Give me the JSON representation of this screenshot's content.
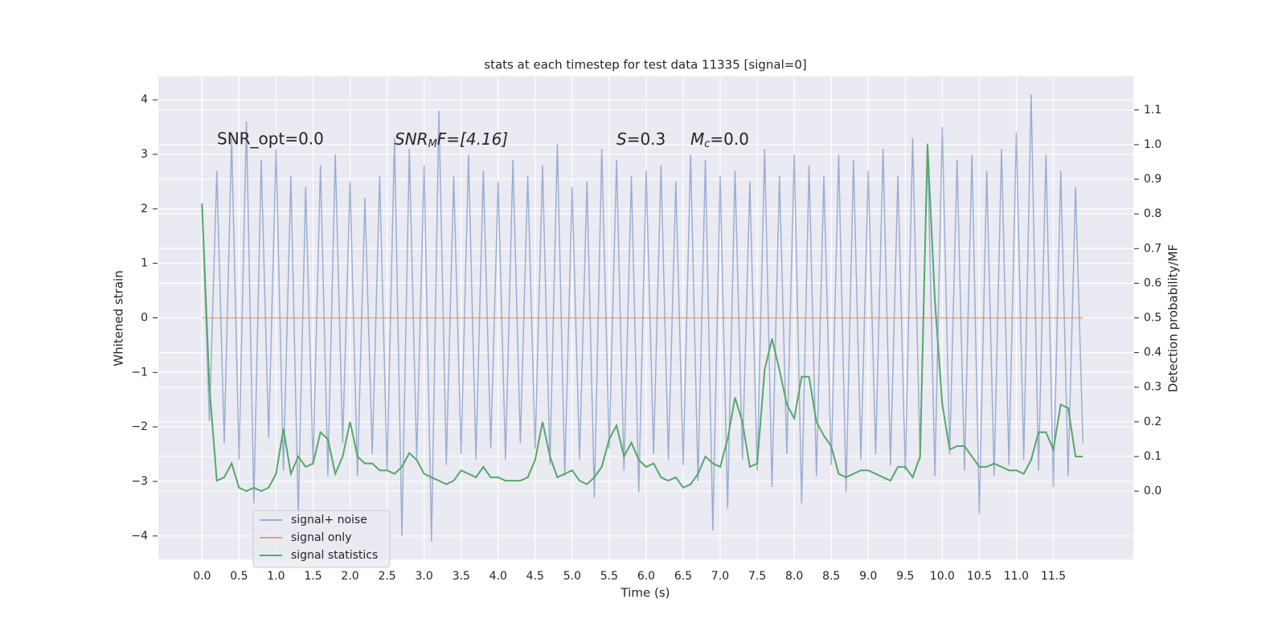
{
  "chart_data": {
    "type": "line",
    "title": "stats at each timestep for test data 11335 [signal=0]",
    "xlabel": "Time (s)",
    "ylabel": "Whitened strain",
    "y2label": "Detection probability/MF",
    "annotations": [
      "SNR_opt=0.0",
      [
        "SNR",
        "M",
        "F=[4.16]"
      ],
      [
        "S",
        "=0.3"
      ],
      [
        "M",
        "c",
        "=0.0"
      ]
    ],
    "x": [
      0.0,
      0.1,
      0.2,
      0.3,
      0.4,
      0.5,
      0.6,
      0.7,
      0.8,
      0.9,
      1.0,
      1.1,
      1.2,
      1.3,
      1.4,
      1.5,
      1.6,
      1.7,
      1.8,
      1.9,
      2.0,
      2.1,
      2.2,
      2.3,
      2.4,
      2.5,
      2.6,
      2.7,
      2.8,
      2.9,
      3.0,
      3.1,
      3.2,
      3.3,
      3.4,
      3.5,
      3.6,
      3.7,
      3.8,
      3.9,
      4.0,
      4.1,
      4.2,
      4.3,
      4.4,
      4.5,
      4.6,
      4.7,
      4.8,
      4.9,
      5.0,
      5.1,
      5.2,
      5.3,
      5.4,
      5.5,
      5.6,
      5.7,
      5.8,
      5.9,
      6.0,
      6.1,
      6.2,
      6.3,
      6.4,
      6.5,
      6.6,
      6.7,
      6.8,
      6.9,
      7.0,
      7.1,
      7.2,
      7.3,
      7.4,
      7.5,
      7.6,
      7.7,
      7.8,
      7.9,
      8.0,
      8.1,
      8.2,
      8.3,
      8.4,
      8.5,
      8.6,
      8.7,
      8.8,
      8.9,
      9.0,
      9.1,
      9.2,
      9.3,
      9.4,
      9.5,
      9.6,
      9.7,
      9.8,
      9.9,
      10.0,
      10.1,
      10.2,
      10.3,
      10.4,
      10.5,
      10.6,
      10.7,
      10.8,
      10.9,
      11.0,
      11.1,
      11.2,
      11.3,
      11.4,
      11.5,
      11.6,
      11.7,
      11.8,
      11.9
    ],
    "series": [
      {
        "name": "signal+ noise",
        "color": "#4c72b0",
        "opacity": 0.5,
        "values": [
          2.1,
          -1.9,
          2.7,
          -2.3,
          3.3,
          -2.6,
          3.6,
          -3.4,
          2.9,
          -2.2,
          3.1,
          -2.8,
          2.6,
          -3.6,
          2.4,
          -2.7,
          2.8,
          -2.9,
          3.0,
          -2.3,
          2.5,
          -2.9,
          2.2,
          -2.5,
          2.6,
          -2.8,
          3.3,
          -4.0,
          3.1,
          -2.6,
          2.8,
          -4.1,
          3.8,
          -2.7,
          2.6,
          -2.5,
          3.0,
          -2.6,
          2.7,
          -2.4,
          2.5,
          -2.6,
          2.9,
          -2.3,
          2.6,
          -2.4,
          2.8,
          -2.7,
          3.2,
          -2.9,
          2.4,
          -2.6,
          2.5,
          -3.3,
          3.1,
          -2.4,
          2.9,
          -2.8,
          2.6,
          -3.2,
          2.7,
          -2.5,
          2.8,
          -2.6,
          2.5,
          -2.7,
          3.0,
          -3.0,
          2.9,
          -3.9,
          2.6,
          -3.5,
          2.7,
          -2.6,
          2.5,
          -2.8,
          3.1,
          -3.1,
          2.6,
          -2.5,
          3.0,
          -3.4,
          2.8,
          -2.9,
          2.6,
          -2.7,
          3.0,
          -3.2,
          2.9,
          -2.6,
          2.7,
          -2.5,
          3.1,
          -2.7,
          2.6,
          -2.8,
          3.3,
          -2.6,
          3.2,
          -2.9,
          3.5,
          -2.5,
          2.9,
          -2.8,
          3.0,
          -3.6,
          2.7,
          -2.9,
          3.1,
          -2.7,
          3.4,
          -2.6,
          4.1,
          -2.8,
          3.0,
          -3.1,
          2.7,
          -2.9,
          2.4,
          -2.3
        ]
      },
      {
        "name": "signal only",
        "color": "#dd8452",
        "opacity": 0.7,
        "values": [
          0,
          0,
          0,
          0,
          0,
          0,
          0,
          0,
          0,
          0,
          0,
          0,
          0,
          0,
          0,
          0,
          0,
          0,
          0,
          0,
          0,
          0,
          0,
          0,
          0,
          0,
          0,
          0,
          0,
          0,
          0,
          0,
          0,
          0,
          0,
          0,
          0,
          0,
          0,
          0,
          0,
          0,
          0,
          0,
          0,
          0,
          0,
          0,
          0,
          0,
          0,
          0,
          0,
          0,
          0,
          0,
          0,
          0,
          0,
          0,
          0,
          0,
          0,
          0,
          0,
          0,
          0,
          0,
          0,
          0,
          0,
          0,
          0,
          0,
          0,
          0,
          0,
          0,
          0,
          0,
          0,
          0,
          0,
          0,
          0,
          0,
          0,
          0,
          0,
          0,
          0,
          0,
          0,
          0,
          0,
          0,
          0,
          0,
          0,
          0,
          0,
          0,
          0,
          0,
          0,
          0,
          0,
          0,
          0,
          0,
          0,
          0,
          0,
          0,
          0,
          0,
          0,
          0,
          0,
          0
        ]
      },
      {
        "name": "signal statistics",
        "color": "#55a868",
        "opacity": 1,
        "axis": "y2",
        "values": [
          0.83,
          0.3,
          0.03,
          0.04,
          0.08,
          0.01,
          0.0,
          0.01,
          0.0,
          0.01,
          0.05,
          0.18,
          0.05,
          0.1,
          0.07,
          0.08,
          0.17,
          0.15,
          0.05,
          0.1,
          0.2,
          0.1,
          0.08,
          0.08,
          0.06,
          0.06,
          0.05,
          0.07,
          0.11,
          0.09,
          0.05,
          0.04,
          0.03,
          0.02,
          0.03,
          0.06,
          0.05,
          0.04,
          0.07,
          0.04,
          0.04,
          0.03,
          0.03,
          0.03,
          0.04,
          0.09,
          0.2,
          0.1,
          0.04,
          0.05,
          0.06,
          0.03,
          0.02,
          0.04,
          0.07,
          0.15,
          0.19,
          0.1,
          0.14,
          0.09,
          0.07,
          0.08,
          0.04,
          0.03,
          0.04,
          0.01,
          0.02,
          0.05,
          0.1,
          0.08,
          0.07,
          0.15,
          0.27,
          0.2,
          0.07,
          0.08,
          0.35,
          0.44,
          0.35,
          0.25,
          0.21,
          0.33,
          0.33,
          0.2,
          0.16,
          0.13,
          0.05,
          0.04,
          0.05,
          0.06,
          0.06,
          0.05,
          0.04,
          0.03,
          0.07,
          0.07,
          0.04,
          0.1,
          1.0,
          0.55,
          0.25,
          0.12,
          0.13,
          0.13,
          0.1,
          0.07,
          0.07,
          0.08,
          0.07,
          0.06,
          0.06,
          0.05,
          0.09,
          0.17,
          0.17,
          0.12,
          0.25,
          0.24,
          0.1,
          0.1
        ]
      }
    ],
    "xlim": [
      -0.59,
      12.58
    ],
    "xticks": [
      {
        "value": 0,
        "label": "0.0"
      },
      0.5,
      {
        "value": 1,
        "label": "1.0"
      },
      1.5,
      {
        "value": 2,
        "label": "2.0"
      },
      2.5,
      {
        "value": 3,
        "label": "3.0"
      },
      3.5,
      {
        "value": 4,
        "label": "4.0"
      },
      4.5,
      {
        "value": 5,
        "label": "5.0"
      },
      5.5,
      {
        "value": 6,
        "label": "6.0"
      },
      6.5,
      {
        "value": 7,
        "label": "7.0"
      },
      7.5,
      {
        "value": 8,
        "label": "8.0"
      },
      8.5,
      {
        "value": 9,
        "label": "9.0"
      },
      9.5,
      {
        "value": 10,
        "label": "10.0"
      },
      10.5,
      {
        "value": 11,
        "label": "11.0"
      },
      11.5
    ],
    "ylim": [
      -4.43,
      4.43
    ],
    "yticks": [
      {
        "value": -4,
        "label": "−4"
      },
      {
        "value": -3,
        "label": "−3"
      },
      {
        "value": -2,
        "label": "−2"
      },
      {
        "value": -1,
        "label": "−1"
      },
      0,
      1,
      2,
      3,
      4
    ],
    "y2lim": [
      -0.197,
      1.197
    ],
    "y2ticks": [
      {
        "value": 0,
        "label": "0.0"
      },
      0.1,
      0.2,
      0.3,
      0.4,
      0.5,
      0.6,
      0.7,
      0.8,
      0.9,
      {
        "value": 1,
        "label": "1.0"
      },
      1.1
    ],
    "grid": true,
    "legend": "lower left"
  }
}
